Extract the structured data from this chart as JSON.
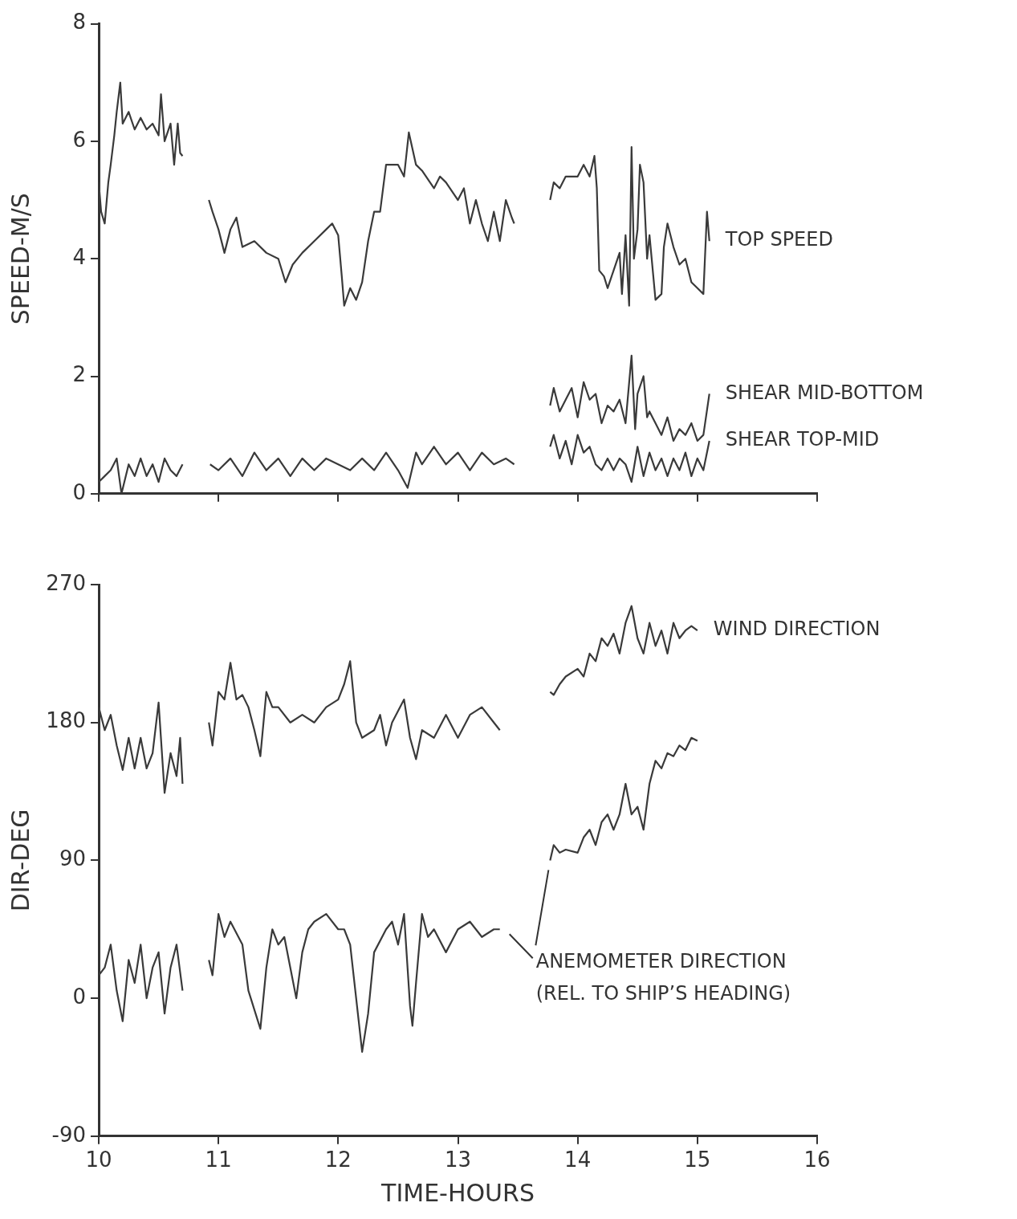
{
  "chart_data": [
    {
      "type": "line",
      "ylabel": "SPEED-M/S",
      "xlim": [
        10,
        16
      ],
      "xticks": [
        10,
        11,
        12,
        13,
        14,
        15,
        16
      ],
      "ylim": [
        0,
        8
      ],
      "yticks": [
        0,
        2,
        4,
        6,
        8
      ],
      "tick_labels": "y",
      "grid": false,
      "legend": false,
      "marker": "none",
      "line_style": "solid",
      "series": [
        {
          "name": "TOP SPEED",
          "color": "#3a3a3a",
          "x": [
            10.0,
            10.02,
            10.05,
            10.08,
            10.1,
            10.13,
            10.15,
            10.18,
            10.2,
            10.25,
            10.3,
            10.35,
            10.4,
            10.45,
            10.5,
            10.52,
            10.55,
            10.6,
            10.63,
            10.66,
            10.68,
            10.7,
            10.8,
            10.92,
            10.95,
            11.0,
            11.05,
            11.1,
            11.15,
            11.2,
            11.3,
            11.4,
            11.5,
            11.56,
            11.62,
            11.7,
            11.8,
            11.9,
            11.95,
            12.0,
            12.03,
            12.05,
            12.1,
            12.15,
            12.2,
            12.25,
            12.3,
            12.35,
            12.4,
            12.5,
            12.55,
            12.59,
            12.65,
            12.7,
            12.8,
            12.85,
            12.9,
            13.0,
            13.05,
            13.1,
            13.15,
            13.2,
            13.25,
            13.3,
            13.35,
            13.4,
            13.45,
            13.47,
            13.6,
            13.77,
            13.8,
            13.85,
            13.9,
            14.0,
            14.05,
            14.1,
            14.14,
            14.16,
            14.18,
            14.22,
            14.25,
            14.3,
            14.35,
            14.37,
            14.4,
            14.43,
            14.45,
            14.47,
            14.5,
            14.52,
            14.55,
            14.58,
            14.6,
            14.65,
            14.7,
            14.72,
            14.75,
            14.8,
            14.85,
            14.9,
            14.95,
            15.0,
            15.05,
            15.08,
            15.1
          ],
          "values": [
            5.3,
            4.8,
            4.6,
            5.3,
            5.6,
            6.1,
            6.5,
            7.0,
            6.3,
            6.5,
            6.2,
            6.4,
            6.2,
            6.3,
            6.1,
            6.8,
            6.0,
            6.3,
            5.6,
            6.3,
            5.8,
            5.75,
            null,
            5.0,
            4.8,
            4.5,
            4.1,
            4.5,
            4.7,
            4.2,
            4.3,
            4.1,
            4.0,
            3.6,
            3.9,
            4.1,
            4.3,
            4.5,
            4.6,
            4.4,
            3.7,
            3.2,
            3.5,
            3.3,
            3.6,
            4.3,
            4.8,
            4.8,
            5.6,
            5.6,
            5.4,
            6.15,
            5.6,
            5.5,
            5.2,
            5.4,
            5.3,
            5.0,
            5.2,
            4.6,
            5.0,
            4.6,
            4.3,
            4.8,
            4.3,
            5.0,
            4.7,
            4.6,
            null,
            5.0,
            5.3,
            5.2,
            5.4,
            5.4,
            5.6,
            5.4,
            5.75,
            5.2,
            3.8,
            3.7,
            3.5,
            3.8,
            4.1,
            3.4,
            4.4,
            3.2,
            5.9,
            4.0,
            4.5,
            5.6,
            5.3,
            4.0,
            4.4,
            3.3,
            3.4,
            4.2,
            4.6,
            4.2,
            3.9,
            4.0,
            3.6,
            3.5,
            3.4,
            4.8,
            4.3
          ]
        },
        {
          "name": "SHEAR MID-BOTTOM",
          "color": "#3a3a3a",
          "x": [
            13.77,
            13.8,
            13.85,
            13.9,
            13.95,
            14.0,
            14.05,
            14.1,
            14.15,
            14.2,
            14.25,
            14.3,
            14.35,
            14.4,
            14.45,
            14.48,
            14.5,
            14.55,
            14.58,
            14.6,
            14.65,
            14.7,
            14.75,
            14.8,
            14.85,
            14.9,
            14.95,
            15.0,
            15.05,
            15.1
          ],
          "values": [
            1.5,
            1.8,
            1.4,
            1.6,
            1.8,
            1.3,
            1.9,
            1.6,
            1.7,
            1.2,
            1.5,
            1.4,
            1.6,
            1.2,
            2.35,
            1.1,
            1.7,
            2.0,
            1.3,
            1.4,
            1.2,
            1.0,
            1.3,
            0.9,
            1.1,
            1.0,
            1.2,
            0.9,
            1.0,
            1.7
          ]
        },
        {
          "name": "SHEAR TOP-MID",
          "color": "#3a3a3a",
          "x": [
            10.0,
            10.05,
            10.1,
            10.15,
            10.19,
            10.25,
            10.3,
            10.35,
            10.4,
            10.45,
            10.5,
            10.55,
            10.6,
            10.65,
            10.7,
            10.8,
            10.93,
            11.0,
            11.1,
            11.2,
            11.3,
            11.4,
            11.5,
            11.6,
            11.7,
            11.8,
            11.9,
            12.0,
            12.1,
            12.2,
            12.3,
            12.4,
            12.5,
            12.58,
            12.65,
            12.7,
            12.8,
            12.9,
            13.0,
            13.1,
            13.2,
            13.3,
            13.4,
            13.47,
            13.6,
            13.77,
            13.8,
            13.85,
            13.9,
            13.95,
            14.0,
            14.05,
            14.1,
            14.15,
            14.2,
            14.25,
            14.3,
            14.35,
            14.4,
            14.45,
            14.5,
            14.55,
            14.6,
            14.65,
            14.7,
            14.75,
            14.8,
            14.85,
            14.9,
            14.95,
            15.0,
            15.05,
            15.1
          ],
          "values": [
            0.2,
            0.3,
            0.4,
            0.6,
            0.0,
            0.5,
            0.3,
            0.6,
            0.3,
            0.5,
            0.2,
            0.6,
            0.4,
            0.3,
            0.5,
            null,
            0.5,
            0.4,
            0.6,
            0.3,
            0.7,
            0.4,
            0.6,
            0.3,
            0.6,
            0.4,
            0.6,
            0.5,
            0.4,
            0.6,
            0.4,
            0.7,
            0.4,
            0.1,
            0.7,
            0.5,
            0.8,
            0.5,
            0.7,
            0.4,
            0.7,
            0.5,
            0.6,
            0.5,
            null,
            0.8,
            1.0,
            0.6,
            0.9,
            0.5,
            1.0,
            0.7,
            0.8,
            0.5,
            0.4,
            0.6,
            0.4,
            0.6,
            0.5,
            0.2,
            0.8,
            0.3,
            0.7,
            0.4,
            0.6,
            0.3,
            0.6,
            0.4,
            0.7,
            0.3,
            0.6,
            0.4,
            0.9
          ]
        }
      ]
    },
    {
      "type": "line",
      "xlabel": "TIME-HOURS",
      "ylabel": "DIR-DEG",
      "xlim": [
        10,
        16
      ],
      "xticks": [
        10,
        11,
        12,
        13,
        14,
        15,
        16
      ],
      "ylim": [
        -90,
        270
      ],
      "yticks": [
        -90,
        0,
        90,
        180,
        270
      ],
      "grid": false,
      "legend": false,
      "marker": "none",
      "line_style": "solid",
      "series": [
        {
          "name": "WIND DIRECTION",
          "color": "#3a3a3a",
          "x": [
            10.0,
            10.05,
            10.1,
            10.15,
            10.2,
            10.25,
            10.3,
            10.35,
            10.4,
            10.45,
            10.5,
            10.55,
            10.6,
            10.65,
            10.68,
            10.7,
            10.8,
            10.92,
            10.95,
            11.0,
            11.05,
            11.1,
            11.15,
            11.2,
            11.25,
            11.3,
            11.35,
            11.4,
            11.45,
            11.5,
            11.6,
            11.7,
            11.8,
            11.9,
            12.0,
            12.05,
            12.1,
            12.15,
            12.2,
            12.3,
            12.35,
            12.4,
            12.45,
            12.55,
            12.6,
            12.65,
            12.7,
            12.8,
            12.9,
            13.0,
            13.1,
            13.2,
            13.3,
            13.35,
            13.5,
            13.77,
            13.8,
            13.85,
            13.9,
            14.0,
            14.05,
            14.1,
            14.15,
            14.2,
            14.25,
            14.3,
            14.35,
            14.4,
            14.45,
            14.5,
            14.55,
            14.6,
            14.65,
            14.7,
            14.75,
            14.8,
            14.85,
            14.9,
            14.95,
            15.0
          ],
          "values": [
            190,
            175,
            185,
            165,
            149,
            170,
            150,
            170,
            150,
            160,
            193,
            134,
            160,
            145,
            170,
            140,
            null,
            180,
            165,
            200,
            195,
            219,
            195,
            198,
            190,
            175,
            158,
            200,
            190,
            190,
            180,
            185,
            180,
            190,
            195,
            205,
            220,
            180,
            170,
            175,
            185,
            165,
            180,
            195,
            170,
            156,
            175,
            170,
            185,
            170,
            185,
            190,
            180,
            175,
            null,
            200,
            198,
            205,
            210,
            215,
            210,
            225,
            220,
            235,
            230,
            238,
            225,
            245,
            256,
            235,
            225,
            245,
            230,
            240,
            225,
            245,
            235,
            240,
            243,
            240
          ]
        },
        {
          "name": "ANEMOMETER DIRECTION (REL. TO SHIP’S HEADING)",
          "color": "#3a3a3a",
          "x": [
            10.0,
            10.05,
            10.1,
            10.15,
            10.2,
            10.25,
            10.3,
            10.35,
            10.4,
            10.45,
            10.5,
            10.55,
            10.6,
            10.65,
            10.7,
            10.8,
            10.92,
            10.95,
            11.0,
            11.05,
            11.1,
            11.2,
            11.25,
            11.35,
            11.4,
            11.45,
            11.5,
            11.55,
            11.6,
            11.65,
            11.7,
            11.75,
            11.8,
            11.9,
            12.0,
            12.05,
            12.1,
            12.15,
            12.2,
            12.25,
            12.3,
            12.4,
            12.45,
            12.5,
            12.55,
            12.6,
            12.62,
            12.65,
            12.7,
            12.75,
            12.8,
            12.9,
            13.0,
            13.1,
            13.2,
            13.3,
            13.35,
            13.5,
            13.77,
            13.8,
            13.85,
            13.9,
            14.0,
            14.05,
            14.1,
            14.15,
            14.2,
            14.25,
            14.3,
            14.35,
            14.4,
            14.45,
            14.5,
            14.55,
            14.6,
            14.65,
            14.7,
            14.75,
            14.8,
            14.85,
            14.9,
            14.95,
            15.0
          ],
          "values": [
            15,
            20,
            35,
            5,
            -15,
            25,
            10,
            35,
            0,
            20,
            30,
            -10,
            20,
            35,
            5,
            null,
            25,
            15,
            55,
            40,
            50,
            35,
            5,
            -20,
            20,
            45,
            35,
            40,
            20,
            0,
            30,
            45,
            50,
            55,
            45,
            45,
            35,
            0,
            -35,
            -10,
            30,
            45,
            50,
            35,
            55,
            -5,
            -18,
            10,
            55,
            40,
            45,
            30,
            45,
            50,
            40,
            45,
            45,
            null,
            90,
            100,
            95,
            97,
            95,
            105,
            110,
            100,
            115,
            120,
            110,
            120,
            140,
            120,
            125,
            110,
            140,
            155,
            150,
            160,
            158,
            165,
            162,
            170,
            168
          ]
        }
      ]
    }
  ]
}
